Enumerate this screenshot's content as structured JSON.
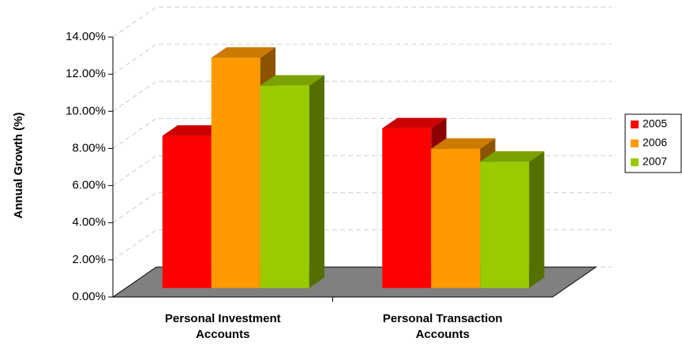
{
  "chart_data": {
    "type": "bar3d",
    "y_label": "Annual Growth (%)",
    "categories": [
      "Personal Investment Accounts",
      "Personal Transaction Accounts"
    ],
    "series": [
      {
        "name": "2005",
        "color": "#ff0000",
        "values": [
          8.2,
          8.6
        ]
      },
      {
        "name": "2006",
        "color": "#ff9900",
        "values": [
          12.4,
          7.5
        ]
      },
      {
        "name": "2007",
        "color": "#99cc00",
        "values": [
          10.9,
          6.8
        ]
      }
    ],
    "ylim": [
      0,
      14
    ],
    "yticks": [
      {
        "value": 0,
        "label": "0.00%"
      },
      {
        "value": 2,
        "label": "2.00%"
      },
      {
        "value": 4,
        "label": "4.00%"
      },
      {
        "value": 6,
        "label": "6.00%"
      },
      {
        "value": 8,
        "label": "8.00%"
      },
      {
        "value": 10,
        "label": "10.00%"
      },
      {
        "value": 12,
        "label": "12.00%"
      },
      {
        "value": 14,
        "label": "14.00%"
      }
    ],
    "grid": true,
    "legend": "right"
  }
}
